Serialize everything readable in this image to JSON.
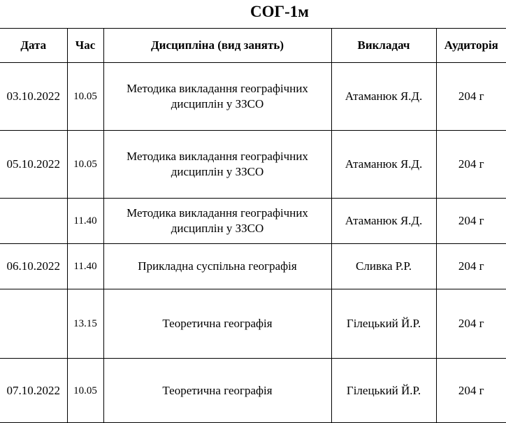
{
  "title": "СОГ-1м",
  "headers": [
    "Дата",
    "Час",
    "Дисципліна (вид занять)",
    "Викладач",
    "Аудиторія"
  ],
  "rows": [
    {
      "date": "03.10.2022",
      "time": "10.05",
      "discipline": "Методика викладання географічних дисциплін у ЗЗСО",
      "teacher": "Атаманюк Я.Д.",
      "room": "204 г"
    },
    {
      "date": "05.10.2022",
      "time": "10.05",
      "discipline": "Методика викладання географічних дисциплін у ЗЗСО",
      "teacher": "Атаманюк Я.Д.",
      "room": "204 г"
    },
    {
      "date": "",
      "time": "11.40",
      "discipline": "Методика викладання географічних дисциплін у ЗЗСО",
      "teacher": "Атаманюк Я.Д.",
      "room": "204 г"
    },
    {
      "date": "06.10.2022",
      "time": "11.40",
      "discipline": "Прикладна суспільна географія",
      "teacher": "Сливка Р.Р.",
      "room": "204 г"
    },
    {
      "date": "",
      "time": "13.15",
      "discipline": "Теоретична географія",
      "teacher": "Гілецький Й.Р.",
      "room": "204 г"
    },
    {
      "date": "07.10.2022",
      "time": "10.05",
      "discipline": "Теоретична географія",
      "teacher": "Гілецький Й.Р.",
      "room": "204 г"
    }
  ]
}
